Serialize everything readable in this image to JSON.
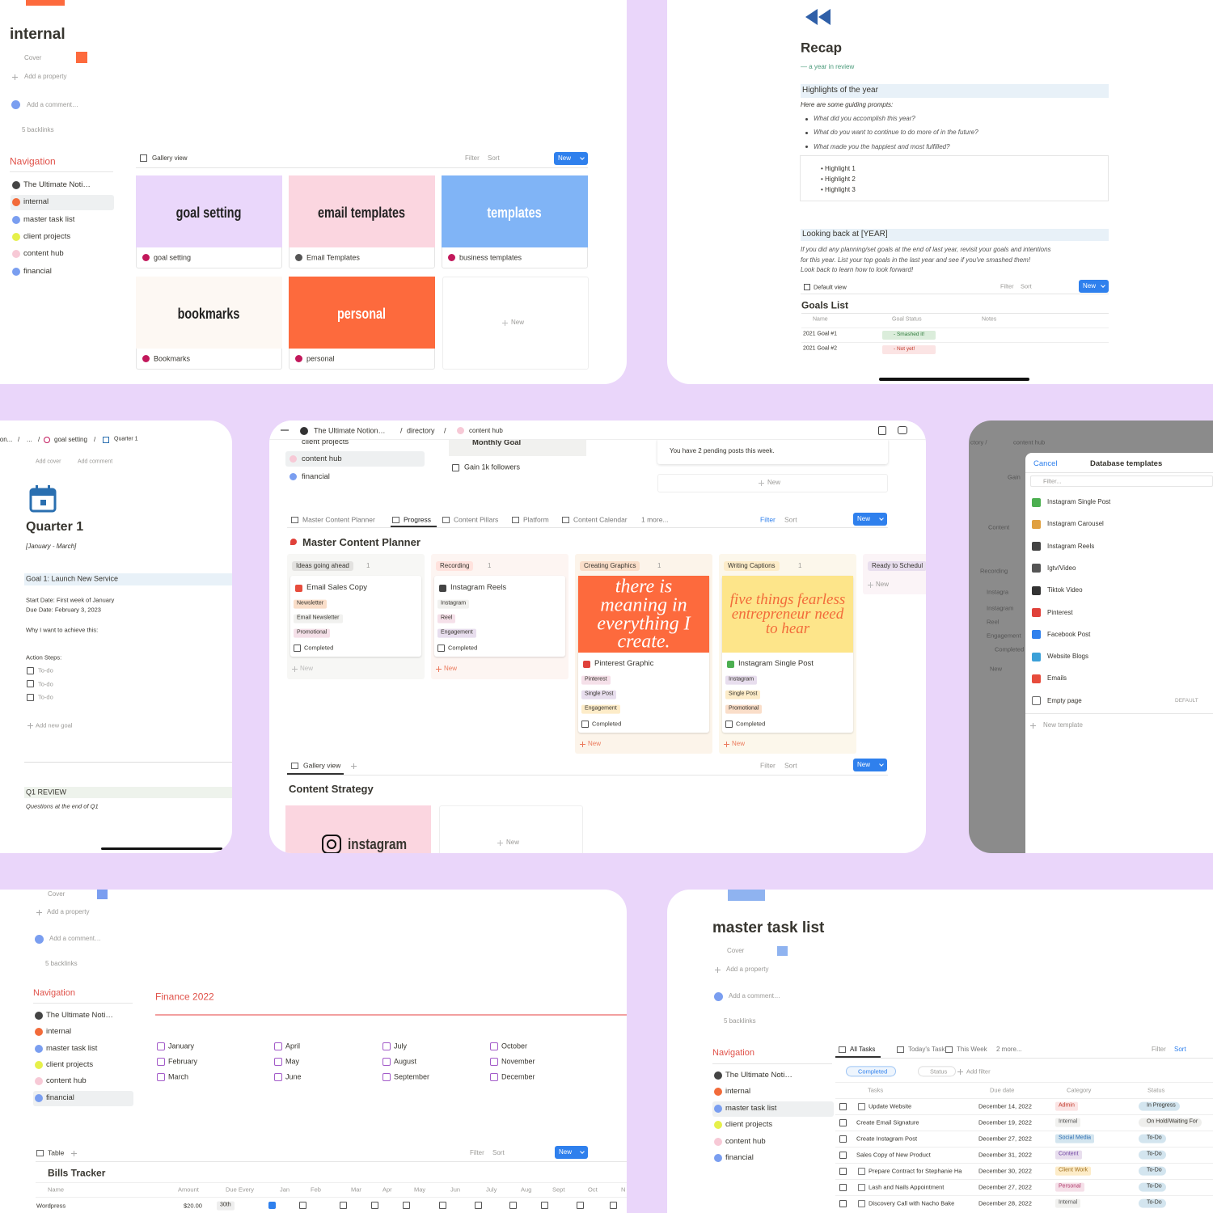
{
  "internal": {
    "title": "internal",
    "cover": "Cover",
    "add_property": "Add a property",
    "add_comment": "Add a comment…",
    "backlinks": "5 backlinks",
    "nav_title": "Navigation",
    "nav": [
      "The Ultimate Noti…",
      "internal",
      "master task list",
      "client projects",
      "content hub",
      "financial"
    ],
    "view": "Gallery view",
    "filter": "Filter",
    "sort": "Sort",
    "new": "New",
    "cards": [
      {
        "cover": "goal setting",
        "name": "goal setting"
      },
      {
        "cover": "email templates",
        "name": "Email Templates"
      },
      {
        "cover": "templates",
        "name": "business templates"
      },
      {
        "cover": "bookmarks",
        "name": "Bookmarks"
      },
      {
        "cover": "personal",
        "name": "personal"
      }
    ],
    "new_card": "New"
  },
  "recap": {
    "title": "Recap",
    "subtitle": "— a year in review",
    "h1": "Highlights of the year",
    "prompt_intro": "Here are some guiding prompts:",
    "prompts": [
      "What did you accomplish this year?",
      "What do you want to continue to do more of in the future?",
      "What made you the happiest and most fulfilled?"
    ],
    "highlights": [
      "• Highlight 1",
      "• Highlight 2",
      "• Highlight 3"
    ],
    "h2": "Looking back at [YEAR]",
    "body": [
      "If you did any planning/set goals at the end of last year, revisit your goals and intentions",
      "for this year.  List your top goals in the last year and see if you've smashed them!",
      "Look back to learn how to look forward!"
    ],
    "view": "Default view",
    "filter": "Filter",
    "sort": "Sort",
    "new": "New",
    "db_title": "Goals List",
    "columns": [
      "Name",
      "Goal Status",
      "Notes"
    ],
    "rows": [
      [
        "2021 Goal #1",
        "- Smashed it!"
      ],
      [
        "2021 Goal #2",
        "- Not yet!"
      ]
    ]
  },
  "quarter": {
    "breadcrumb": [
      "ion...",
      "...",
      "goal setting",
      "Quarter 1"
    ],
    "separator": "/",
    "add_cover": "Add cover",
    "add_comment": "Add comment",
    "title": "Quarter 1",
    "dates": "[January - March]",
    "goal": "Goal 1: Launch New Service",
    "start": "Start Date: First week of January",
    "due": "Due Date: February 3, 2023",
    "why": "Why I want to achieve this:",
    "steps": "Action Steps:",
    "todos": [
      "To-do",
      "To-do",
      "To-do"
    ],
    "add_goal": "Add new goal",
    "review": "Q1 REVIEW",
    "review_q": "Questions at the end of Q1"
  },
  "content_hub": {
    "breadcrumb": [
      "The Ultimate Notion…",
      "directory",
      "content hub"
    ],
    "separator": "/",
    "nav": [
      "client projects",
      "content hub",
      "financial"
    ],
    "monthly": "Monthly Goal",
    "followers": "Gain 1k followers",
    "pending": "You have 2 pending posts this week.",
    "new": "New",
    "tabs": [
      "Master Content Planner",
      "Progress",
      "Content Pillars",
      "Platform",
      "Content Calendar",
      "1 more..."
    ],
    "filter": "Filter",
    "sort": "Sort",
    "db_title": "Master Content Planner",
    "columns": [
      {
        "name": "Ideas going ahead",
        "count": 1,
        "card": {
          "title": "Email Sales Copy",
          "tags": [
            "Newsletter",
            "Email Newsletter",
            "Promotional"
          ],
          "check": "Completed"
        }
      },
      {
        "name": "Recording",
        "count": 1,
        "card": {
          "title": "Instagram Reels",
          "tags": [
            "Instagram",
            "Reel",
            "Engagement"
          ],
          "check": "Completed"
        }
      },
      {
        "name": "Creating Graphics",
        "count": 1,
        "card": {
          "image": "there is meaning in everything I create.",
          "title": "Pinterest Graphic",
          "tags": [
            "Pinterest",
            "Single Post",
            "Engagement"
          ],
          "check": "Completed"
        }
      },
      {
        "name": "Writing Captions",
        "count": 1,
        "card": {
          "image": "five things fearless entrepreneur need to hear",
          "title": "Instagram Single Post",
          "tags": [
            "Instagram",
            "Single Post",
            "Promotional"
          ],
          "check": "Completed"
        }
      },
      {
        "name": "Ready to Schedul"
      }
    ],
    "gallery_view": "Gallery view",
    "gallery_title": "Content Strategy",
    "gallery_card": "instagram"
  },
  "templates": {
    "background": [
      "ctory /",
      "content hub",
      "Gain",
      "Content",
      "Recording",
      "Instagra",
      "Instagram",
      "Reel",
      "Engagement",
      "Completed",
      "New"
    ],
    "cancel": "Cancel",
    "title": "Database templates",
    "filter": "Filter...",
    "items": [
      "Instagram Single Post",
      "Instagram Carousel",
      "Instagram Reels",
      "Igtv/Video",
      "Tiktok Video",
      "Pinterest",
      "Facebook Post",
      "Website Blogs",
      "Emails",
      "Empty page"
    ],
    "default": "DEFAULT",
    "new_template": "New template"
  },
  "financial": {
    "cover": "Cover",
    "add_property": "Add a property",
    "add_comment": "Add a comment…",
    "backlinks": "5 backlinks",
    "nav_title": "Navigation",
    "nav": [
      "The Ultimate Noti…",
      "internal",
      "master task list",
      "client projects",
      "content hub",
      "financial"
    ],
    "heading": "Finance 2022",
    "months": [
      "January",
      "February",
      "March",
      "April",
      "May",
      "June",
      "July",
      "August",
      "September",
      "October",
      "November",
      "December"
    ],
    "view": "Table",
    "filter": "Filter",
    "sort": "Sort",
    "new": "New",
    "db_title": "Bills Tracker",
    "columns": [
      "Name",
      "Amount",
      "Due Every",
      "Jan",
      "Feb",
      "Mar",
      "Apr",
      "May",
      "Jun",
      "July",
      "Aug",
      "Sept",
      "Oct",
      "N"
    ],
    "rows": [
      [
        "Wordpress",
        "$20.00",
        "30th"
      ]
    ]
  },
  "tasks": {
    "title": "master task list",
    "cover": "Cover",
    "add_property": "Add a property",
    "add_comment": "Add a comment…",
    "backlinks": "5 backlinks",
    "nav_title": "Navigation",
    "nav": [
      "The Ultimate Noti…",
      "internal",
      "master task list",
      "client projects",
      "content hub",
      "financial"
    ],
    "tabs": [
      "All Tasks",
      "Today's Task",
      "This Week",
      "2 more..."
    ],
    "filter": "Filter",
    "sort": "Sort",
    "chips": [
      "Completed",
      "Status",
      "Add filter"
    ],
    "columns": [
      "Tasks",
      "Due date",
      "Category",
      "Status"
    ],
    "rows": [
      [
        "Update Website",
        "December 14, 2022",
        "Admin",
        "In Progress"
      ],
      [
        "Create Email Signature",
        "December 19, 2022",
        "Internal",
        "On Hold/Waiting For"
      ],
      [
        "Create Instagram Post",
        "December 27, 2022",
        "Social Media",
        "To-Do"
      ],
      [
        "Sales Copy of New Product",
        "December 31, 2022",
        "Content",
        "To-Do"
      ],
      [
        "Prepare Contract for Stephanie Ha",
        "December 30, 2022",
        "Client Work",
        "To-Do"
      ],
      [
        "Lash and Nails Appointment",
        "December 27, 2022",
        "Personal",
        "To-Do"
      ],
      [
        "Discovery Call with Nacho Bake",
        "December 28, 2022",
        "Internal",
        "To-Do"
      ]
    ]
  }
}
